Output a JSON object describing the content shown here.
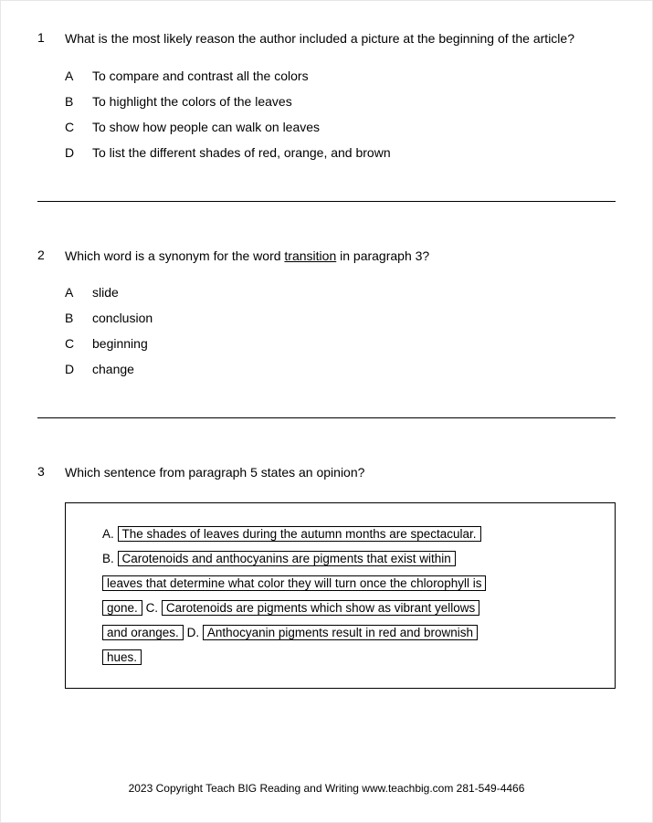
{
  "questions": [
    {
      "number": "1",
      "text": "What is the most likely reason the author included a picture at the beginning of the article?",
      "options": [
        {
          "letter": "A",
          "text": "To compare and contrast all the colors"
        },
        {
          "letter": "B",
          "text": "To highlight the colors of the leaves"
        },
        {
          "letter": "C",
          "text": "To show how people can walk on leaves"
        },
        {
          "letter": "D",
          "text": "To list the different shades of red, orange, and brown"
        }
      ]
    },
    {
      "number": "2",
      "text_pre": "Which word is a synonym for the word ",
      "text_underline": "transition",
      "text_post": " in paragraph 3?",
      "options": [
        {
          "letter": "A",
          "text": "slide"
        },
        {
          "letter": "B",
          "text": "conclusion"
        },
        {
          "letter": "C",
          "text": "beginning"
        },
        {
          "letter": "D",
          "text": "change"
        }
      ]
    },
    {
      "number": "3",
      "text": "Which sentence from paragraph 5 states an opinion?",
      "boxed": {
        "a_letter": "A.",
        "a_text": "The shades of leaves during the autumn months are spectacular.",
        "b_letter": "B.",
        "b_text_1": "Carotenoids and anthocyanins are pigments that exist within",
        "b_text_2": "leaves that determine what color they will turn once the chlorophyll is",
        "b_text_3": "gone.",
        "c_letter": "C.",
        "c_text_1": "Carotenoids are pigments which show as vibrant yellows",
        "c_text_2": "and oranges.",
        "d_letter": "D.",
        "d_text_1": "Anthocyanin pigments result in red and brownish",
        "d_text_2": "hues."
      }
    }
  ],
  "footer": "2023 Copyright Teach BIG Reading and Writing www.teachbig.com 281-549-4466",
  "colors": {
    "text": "#000000",
    "background": "#ffffff",
    "border": "#e6e6e6",
    "divider": "#000000"
  },
  "fonts": {
    "body_family": "Verdana, Geneva, sans-serif",
    "body_size": 14,
    "footer_size": 12
  }
}
